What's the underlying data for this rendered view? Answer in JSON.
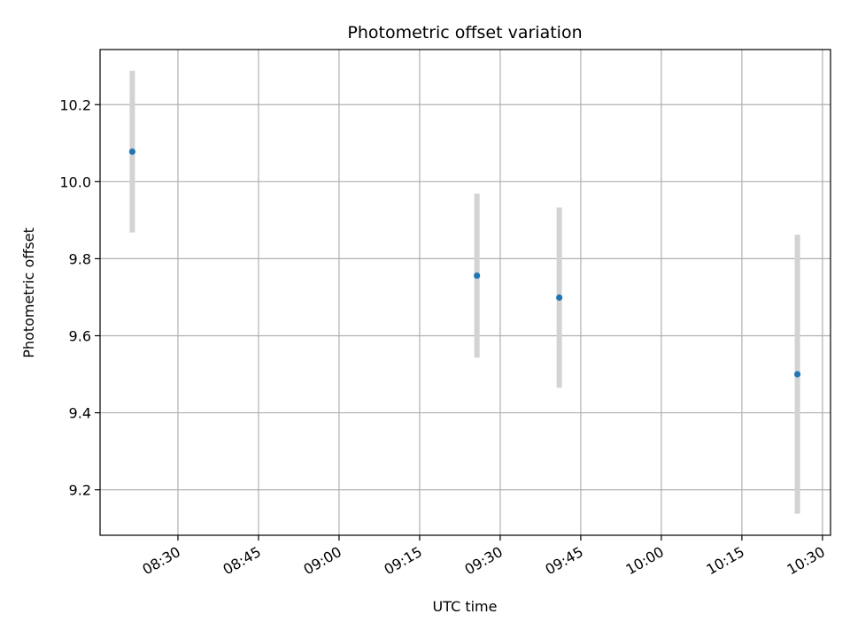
{
  "chart_data": {
    "type": "scatter",
    "title": "Photometric offset variation",
    "xlabel": "UTC time",
    "ylabel": "Photometric offset",
    "x_axis_kind": "time",
    "xlim": [
      "08:15:30",
      "10:31:30"
    ],
    "ylim": [
      9.082,
      10.343
    ],
    "x_ticks": [
      "08:30",
      "08:45",
      "09:00",
      "09:15",
      "09:30",
      "09:45",
      "10:00",
      "10:15",
      "10:30"
    ],
    "y_ticks": [
      9.2,
      9.4,
      9.6,
      9.8,
      10.0,
      10.2
    ],
    "y_tick_labels": [
      "9.2",
      "9.4",
      "9.6",
      "9.8",
      "10.0",
      "10.2"
    ],
    "grid": true,
    "series": [
      {
        "points": [
          {
            "x": "08:21:30",
            "y": 10.078,
            "yerr": 0.21
          },
          {
            "x": "09:25:40",
            "y": 9.756,
            "yerr": 0.213
          },
          {
            "x": "09:41:00",
            "y": 9.699,
            "yerr": 0.234
          },
          {
            "x": "10:25:20",
            "y": 9.5,
            "yerr": 0.362
          }
        ]
      }
    ],
    "colors": {
      "marker": "#1f77b4",
      "errorbar": "#d3d3d3",
      "grid": "#b0b0b0",
      "axes": "#000000"
    }
  }
}
